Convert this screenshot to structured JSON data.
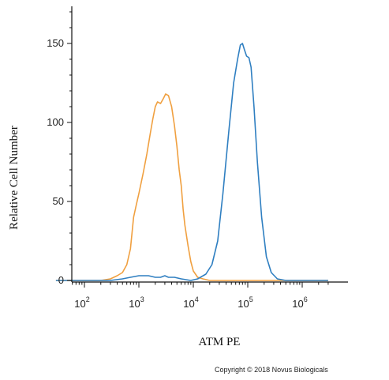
{
  "chart_data": {
    "type": "line",
    "title": "",
    "xlabel": "ATM PE",
    "ylabel": "Relative Cell Number",
    "x_scale": "log",
    "xlim": [
      30,
      3000000
    ],
    "ylim": [
      0,
      175
    ],
    "y_ticks": [
      0,
      50,
      100,
      150
    ],
    "x_ticks": [
      {
        "value": 100,
        "base": "10",
        "exp": "2"
      },
      {
        "value": 1000,
        "base": "10",
        "exp": "3"
      },
      {
        "value": 10000,
        "base": "10",
        "exp": "4"
      },
      {
        "value": 100000,
        "base": "10",
        "exp": "5"
      },
      {
        "value": 1000000,
        "base": "10",
        "exp": "6"
      }
    ],
    "grid": false,
    "legend": "none",
    "series": [
      {
        "color": "#f0a040",
        "points": [
          [
            30,
            0
          ],
          [
            200,
            0
          ],
          [
            300,
            1
          ],
          [
            400,
            3
          ],
          [
            500,
            5
          ],
          [
            600,
            10
          ],
          [
            700,
            20
          ],
          [
            800,
            40
          ],
          [
            900,
            48
          ],
          [
            1000,
            55
          ],
          [
            1200,
            68
          ],
          [
            1400,
            80
          ],
          [
            1600,
            92
          ],
          [
            1800,
            102
          ],
          [
            2000,
            110
          ],
          [
            2200,
            113
          ],
          [
            2500,
            112
          ],
          [
            2800,
            115
          ],
          [
            3100,
            118
          ],
          [
            3500,
            117
          ],
          [
            4000,
            110
          ],
          [
            4500,
            98
          ],
          [
            5000,
            85
          ],
          [
            5500,
            70
          ],
          [
            6000,
            60
          ],
          [
            6500,
            45
          ],
          [
            7000,
            35
          ],
          [
            8000,
            22
          ],
          [
            9000,
            12
          ],
          [
            10000,
            6
          ],
          [
            12000,
            2
          ],
          [
            15000,
            1
          ],
          [
            20000,
            0
          ],
          [
            3000000,
            0
          ]
        ]
      },
      {
        "color": "#2f7fc1",
        "points": [
          [
            30,
            0
          ],
          [
            300,
            0
          ],
          [
            500,
            1
          ],
          [
            700,
            2
          ],
          [
            1000,
            3
          ],
          [
            1500,
            3
          ],
          [
            2000,
            2
          ],
          [
            2500,
            2
          ],
          [
            3000,
            3
          ],
          [
            3500,
            2
          ],
          [
            4500,
            2
          ],
          [
            6000,
            1
          ],
          [
            9000,
            0
          ],
          [
            12000,
            1
          ],
          [
            17000,
            4
          ],
          [
            22000,
            10
          ],
          [
            28000,
            25
          ],
          [
            35000,
            55
          ],
          [
            45000,
            95
          ],
          [
            55000,
            125
          ],
          [
            65000,
            140
          ],
          [
            73000,
            149
          ],
          [
            80000,
            150
          ],
          [
            87000,
            146
          ],
          [
            95000,
            142
          ],
          [
            105000,
            141
          ],
          [
            115000,
            135
          ],
          [
            130000,
            110
          ],
          [
            150000,
            75
          ],
          [
            180000,
            40
          ],
          [
            220000,
            15
          ],
          [
            270000,
            5
          ],
          [
            350000,
            1
          ],
          [
            500000,
            0
          ],
          [
            3000000,
            0
          ]
        ]
      }
    ]
  },
  "copyright": "Copyright © 2018 Novus Biologicals"
}
